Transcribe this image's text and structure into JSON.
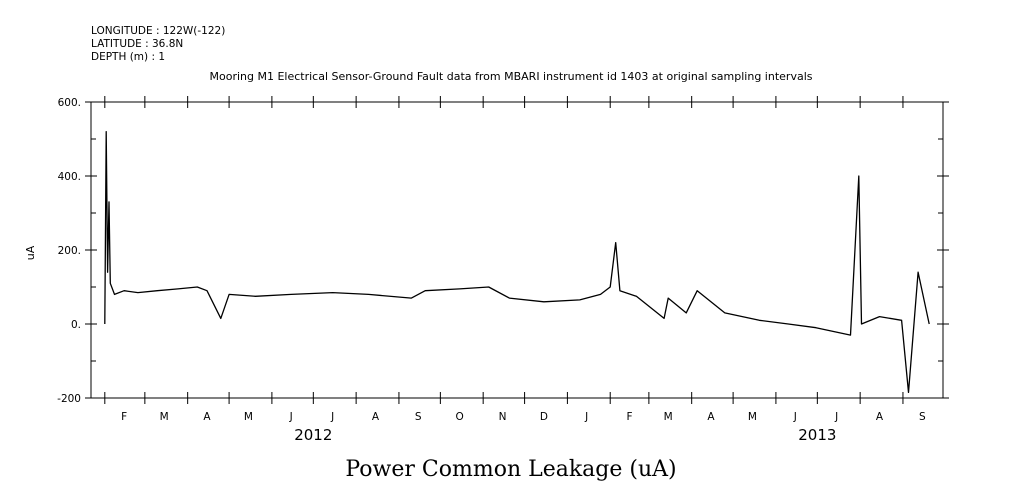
{
  "header": {
    "longitude": "LONGITUDE : 122W(-122)",
    "latitude": "LATITUDE : 36.8N",
    "depth": "DEPTH (m) : 1"
  },
  "chart_data": {
    "type": "line",
    "title": "Mooring M1 Electrical Sensor-Ground Fault data from MBARI instrument id 1403 at original sampling intervals",
    "xlabel": "Power Common Leakage (uA)",
    "ylabel": "uA",
    "x_range": [
      "2012-01-22",
      "2013-09-30"
    ],
    "ylim": [
      -200,
      600
    ],
    "y_ticks": [
      -200,
      0,
      200,
      400,
      600
    ],
    "y_tick_labels": [
      "-200",
      "0.",
      "200.",
      "400.",
      "600."
    ],
    "month_labels": [
      "F",
      "M",
      "A",
      "M",
      "J",
      "J",
      "A",
      "S",
      "O",
      "N",
      "D",
      "J",
      "F",
      "M",
      "A",
      "M",
      "J",
      "J",
      "A",
      "S"
    ],
    "month_label_dates": [
      "2012-02-15",
      "2012-03-15",
      "2012-04-15",
      "2012-05-15",
      "2012-06-15",
      "2012-07-15",
      "2012-08-15",
      "2012-09-15",
      "2012-10-15",
      "2012-11-15",
      "2012-12-15",
      "2013-01-15",
      "2013-02-15",
      "2013-03-15",
      "2013-04-15",
      "2013-05-15",
      "2013-06-15",
      "2013-07-15",
      "2013-08-15",
      "2013-09-15"
    ],
    "year_labels": [
      "2012",
      "2013"
    ],
    "year_label_dates": [
      "2012-07-01",
      "2013-07-01"
    ],
    "grid": false,
    "legend": "none",
    "line_color": "#000000",
    "series": [
      {
        "values": [
          [
            "2012-02-01",
            0
          ],
          [
            "2012-02-02",
            520
          ],
          [
            "2012-02-03",
            140
          ],
          [
            "2012-02-04",
            330
          ],
          [
            "2012-02-05",
            110
          ],
          [
            "2012-02-08",
            80
          ],
          [
            "2012-02-15",
            90
          ],
          [
            "2012-02-25",
            85
          ],
          [
            "2012-03-10",
            90
          ],
          [
            "2012-03-25",
            95
          ],
          [
            "2012-04-08",
            100
          ],
          [
            "2012-04-15",
            90
          ],
          [
            "2012-04-25",
            15
          ],
          [
            "2012-05-01",
            80
          ],
          [
            "2012-05-20",
            75
          ],
          [
            "2012-06-15",
            80
          ],
          [
            "2012-07-15",
            85
          ],
          [
            "2012-08-10",
            80
          ],
          [
            "2012-09-10",
            70
          ],
          [
            "2012-09-20",
            90
          ],
          [
            "2012-10-15",
            95
          ],
          [
            "2012-11-05",
            100
          ],
          [
            "2012-11-20",
            70
          ],
          [
            "2012-12-15",
            60
          ],
          [
            "2013-01-10",
            65
          ],
          [
            "2013-01-25",
            80
          ],
          [
            "2013-02-01",
            100
          ],
          [
            "2013-02-05",
            220
          ],
          [
            "2013-02-08",
            90
          ],
          [
            "2013-02-20",
            75
          ],
          [
            "2013-03-12",
            15
          ],
          [
            "2013-03-15",
            70
          ],
          [
            "2013-03-28",
            30
          ],
          [
            "2013-04-05",
            90
          ],
          [
            "2013-04-25",
            30
          ],
          [
            "2013-05-20",
            10
          ],
          [
            "2013-06-10",
            0
          ],
          [
            "2013-06-30",
            -10
          ],
          [
            "2013-07-25",
            -30
          ],
          [
            "2013-07-31",
            400
          ],
          [
            "2013-08-02",
            0
          ],
          [
            "2013-08-15",
            20
          ],
          [
            "2013-08-31",
            10
          ],
          [
            "2013-09-05",
            -185
          ],
          [
            "2013-09-12",
            140
          ],
          [
            "2013-09-20",
            0
          ]
        ]
      }
    ]
  }
}
